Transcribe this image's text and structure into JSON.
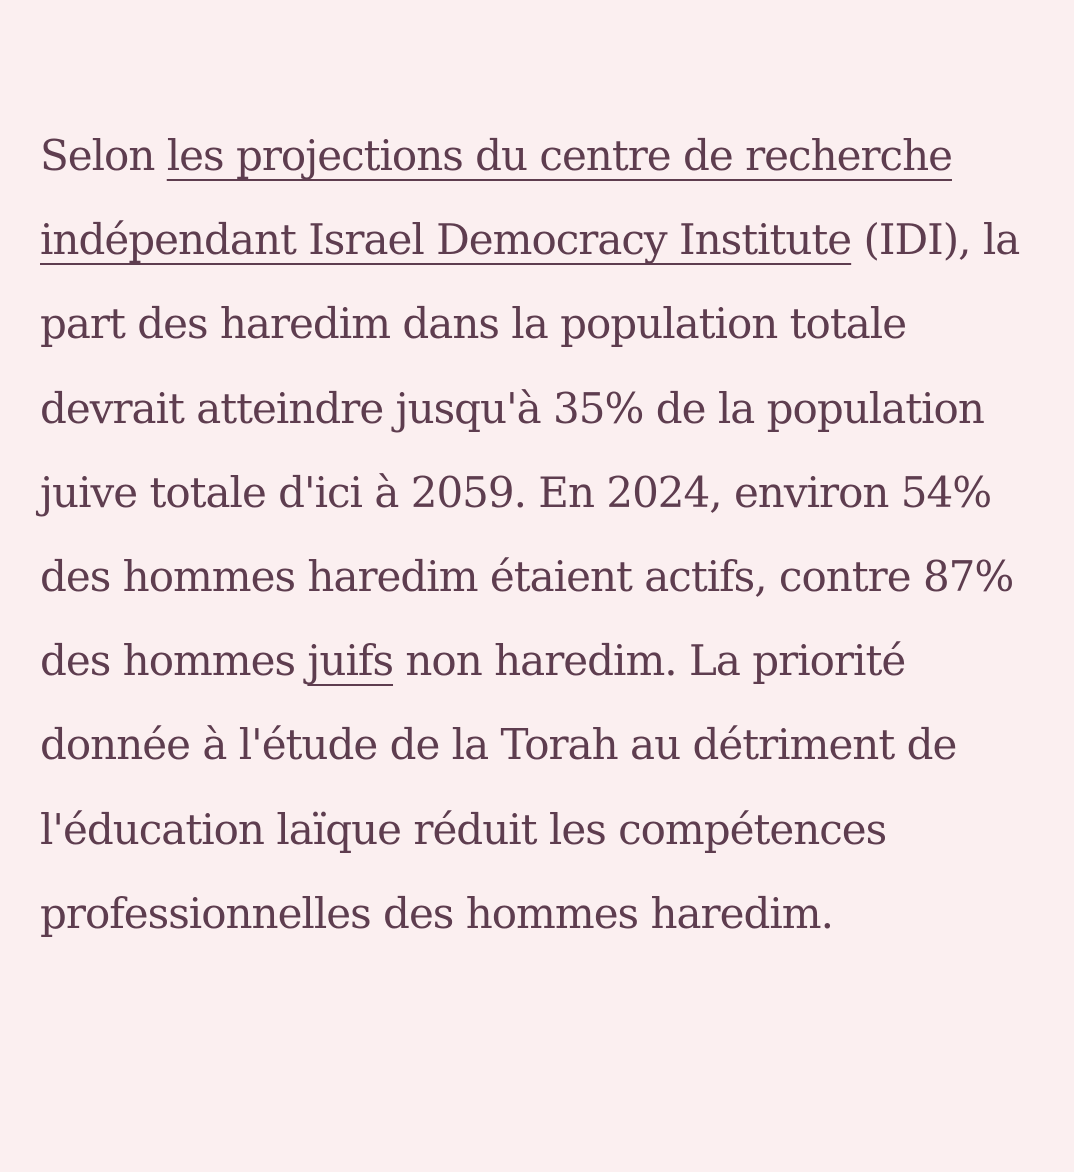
{
  "article": {
    "segments": [
      {
        "type": "text",
        "text": "Selon "
      },
      {
        "type": "link",
        "text": "les projections du centre de recherche indépendant Israel Democracy Institute"
      },
      {
        "type": "text",
        "text": " (IDI), la part des haredim dans la population totale devrait atteindre jusqu'à 35% de la population juive totale d'ici à 2059. En 2024, environ 54% des hommes haredim étaient actifs, contre 87% des hommes "
      },
      {
        "type": "link",
        "text": "juifs"
      },
      {
        "type": "text",
        "text": " non haredim. La priorité donnée à l'étude de la Torah au détriment de l'éducation laïque réduit les compétences professionnelles des hommes haredim."
      }
    ]
  },
  "colors": {
    "background": "#fbeff0",
    "text": "#5e3d4f"
  }
}
